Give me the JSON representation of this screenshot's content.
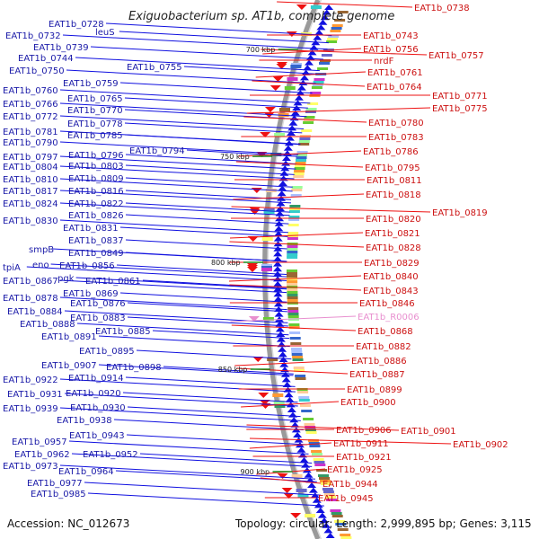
{
  "title": "Exiguobacterium sp. AT1b, complete genome",
  "accession": "Accession: NC_012673",
  "summary": "Topology: circular; Length: 2,999,895 bp; Genes: 3,115",
  "ticks": [
    "700 kbp",
    "750 kbp",
    "800 kbp",
    "850 kbp",
    "900 kbp"
  ],
  "left_labels": [
    "EAT1b_0728",
    "leuS",
    "EAT1b_0732",
    "EAT1b_0739",
    "EAT1b_0744",
    "EAT1b_0750",
    "EAT1b_0755",
    "EAT1b_0759",
    "EAT1b_0760",
    "EAT1b_0765",
    "EAT1b_0766",
    "EAT1b_0770",
    "EAT1b_0772",
    "EAT1b_0778",
    "EAT1b_0781",
    "EAT1b_0785",
    "EAT1b_0790",
    "EAT1b_0794",
    "EAT1b_0797",
    "EAT1b_0796",
    "EAT1b_0804",
    "EAT1b_0803",
    "EAT1b_0810",
    "EAT1b_0809",
    "EAT1b_0817",
    "EAT1b_0816",
    "EAT1b_0824",
    "EAT1b_0822",
    "EAT1b_0830",
    "EAT1b_0826",
    "EAT1b_0831",
    "EAT1b_0837",
    "smpB",
    "EAT1b_0849",
    "tpiA",
    "eno",
    "EAT1b_0856",
    "pgk",
    "EAT1b_0867",
    "EAT1b_0861",
    "EAT1b_0869",
    "EAT1b_0878",
    "EAT1b_0876",
    "EAT1b_0884",
    "EAT1b_0883",
    "EAT1b_0888",
    "EAT1b_0885",
    "EAT1b_0891",
    "EAT1b_0895",
    "EAT1b_0907",
    "EAT1b_0898",
    "EAT1b_0914",
    "EAT1b_0922",
    "EAT1b_0920",
    "EAT1b_0931",
    "EAT1b_0930",
    "EAT1b_0939",
    "EAT1b_0938",
    "EAT1b_0943",
    "EAT1b_0957",
    "EAT1b_0952",
    "EAT1b_0962",
    "EAT1b_0964",
    "EAT1b_0973",
    "EAT1b_0977",
    "EAT1b_0985"
  ],
  "right_labels": [
    "EAT1b_0738",
    "EAT1b_0743",
    "EAT1b_0756",
    "EAT1b_0757",
    "nrdF",
    "EAT1b_0761",
    "EAT1b_0764",
    "EAT1b_0771",
    "EAT1b_0775",
    "EAT1b_0780",
    "EAT1b_0783",
    "EAT1b_0786",
    "EAT1b_0795",
    "EAT1b_0811",
    "EAT1b_0818",
    "EAT1b_0819",
    "EAT1b_0820",
    "EAT1b_0821",
    "EAT1b_0828",
    "EAT1b_0829",
    "EAT1b_0840",
    "EAT1b_0843",
    "EAT1b_0846",
    "EAT1b_R0006",
    "EAT1b_0868",
    "EAT1b_0882",
    "EAT1b_0886",
    "EAT1b_0887",
    "EAT1b_0899",
    "EAT1b_0900",
    "EAT1b_0901",
    "EAT1b_0906",
    "EAT1b_0911",
    "EAT1b_0902",
    "EAT1b_0921",
    "EAT1b_0925",
    "EAT1b_0944",
    "EAT1b_0945"
  ],
  "colors": {
    "forward": "#1010e0",
    "reverse": "#ee1111",
    "rrna": "#e88fcf",
    "backbone": "#9a9a9a",
    "tick_mark": "#1a8a1a"
  }
}
